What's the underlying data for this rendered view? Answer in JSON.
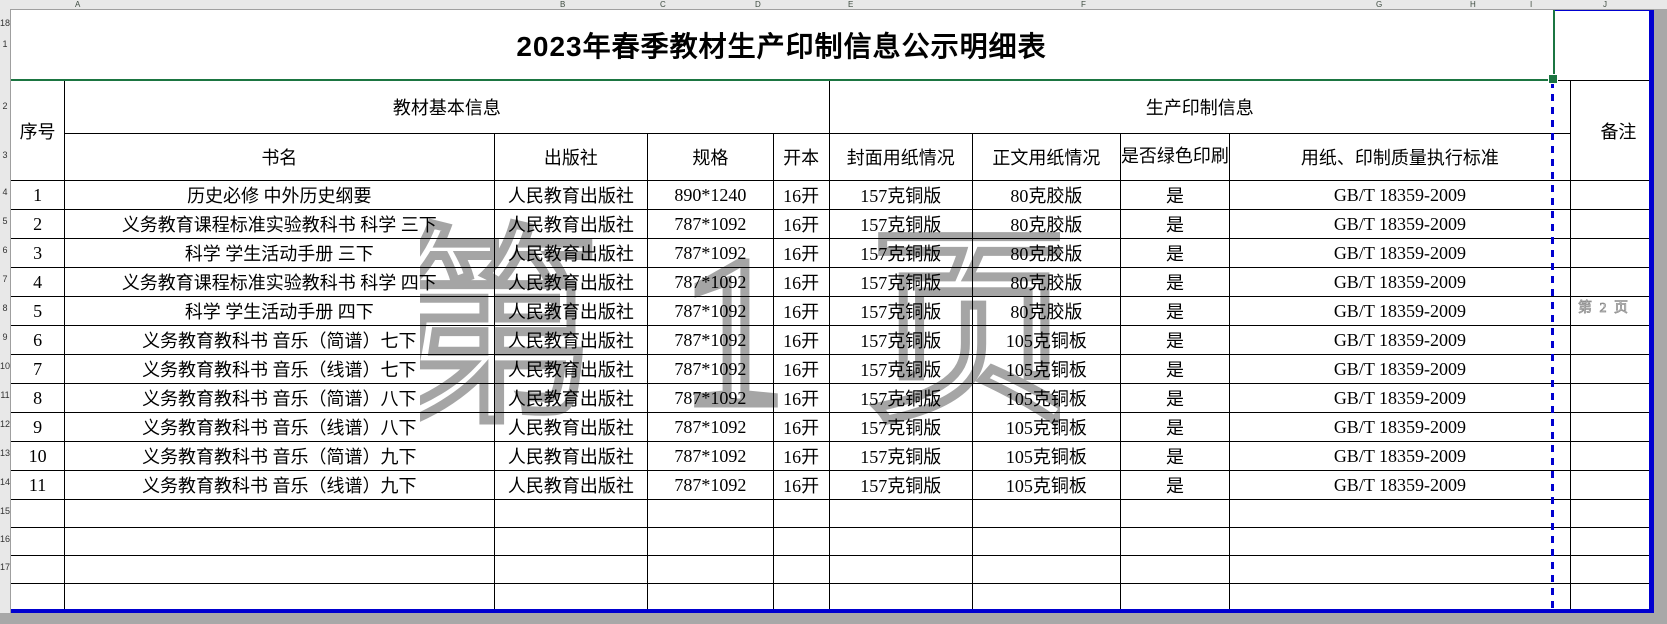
{
  "colors": {
    "selection_green": "#1b7541",
    "print_area_blue": "#0000d0",
    "grid_line_black": "#000000",
    "outside_gray": "#a8a8a8",
    "watermark_gray": "#8f8f8f",
    "header_strip_gray": "#e8e8e8"
  },
  "spreadsheet": {
    "column_letters": [
      "A",
      "B",
      "C",
      "D",
      "E",
      "F",
      "G",
      "H",
      "I",
      "J"
    ],
    "row_numbers": [
      "1",
      "2",
      "3",
      "4",
      "5",
      "6",
      "7",
      "8",
      "9",
      "10",
      "11",
      "12",
      "13",
      "14",
      "15",
      "16",
      "17",
      "18"
    ],
    "watermark_page1": "第 1 页",
    "watermark_page2": "第 2 页"
  },
  "title": "2023年春季教材生产印制信息公示明细表",
  "table": {
    "group_headers": {
      "serial": "序号",
      "basic": "教材基本信息",
      "production": "生产印制信息",
      "remark": "备注"
    },
    "sub_headers": {
      "name": "书名",
      "publisher": "出版社",
      "spec": "规格",
      "format": "开本",
      "cover": "封面用纸情况",
      "body": "正文用纸情况",
      "green": "是否绿色印刷",
      "standard": "用纸、印制质量执行标准"
    },
    "rows": [
      {
        "no": "1",
        "name": "历史必修 中外历史纲要",
        "publisher": "人民教育出版社",
        "spec": "890*1240",
        "format": "16开",
        "cover": "157克铜版",
        "body": "80克胶版",
        "green": "是",
        "standard": "GB/T 18359-2009",
        "remark": ""
      },
      {
        "no": "2",
        "name": "义务教育课程标准实验教科书 科学 三下",
        "publisher": "人民教育出版社",
        "spec": "787*1092",
        "format": "16开",
        "cover": "157克铜版",
        "body": "80克胶版",
        "green": "是",
        "standard": "GB/T 18359-2009",
        "remark": ""
      },
      {
        "no": "3",
        "name": "科学 学生活动手册 三下",
        "publisher": "人民教育出版社",
        "spec": "787*1092",
        "format": "16开",
        "cover": "157克铜版",
        "body": "80克胶版",
        "green": "是",
        "standard": "GB/T 18359-2009",
        "remark": ""
      },
      {
        "no": "4",
        "name": "义务教育课程标准实验教科书 科学 四下",
        "publisher": "人民教育出版社",
        "spec": "787*1092",
        "format": "16开",
        "cover": "157克铜版",
        "body": "80克胶版",
        "green": "是",
        "standard": "GB/T 18359-2009",
        "remark": ""
      },
      {
        "no": "5",
        "name": "科学 学生活动手册 四下",
        "publisher": "人民教育出版社",
        "spec": "787*1092",
        "format": "16开",
        "cover": "157克铜版",
        "body": "80克胶版",
        "green": "是",
        "standard": "GB/T 18359-2009",
        "remark": ""
      },
      {
        "no": "6",
        "name": "义务教育教科书 音乐（简谱）七下",
        "publisher": "人民教育出版社",
        "spec": "787*1092",
        "format": "16开",
        "cover": "157克铜版",
        "body": "105克铜板",
        "green": "是",
        "standard": "GB/T 18359-2009",
        "remark": ""
      },
      {
        "no": "7",
        "name": "义务教育教科书 音乐（线谱）七下",
        "publisher": "人民教育出版社",
        "spec": "787*1092",
        "format": "16开",
        "cover": "157克铜版",
        "body": "105克铜板",
        "green": "是",
        "standard": "GB/T 18359-2009",
        "remark": ""
      },
      {
        "no": "8",
        "name": "义务教育教科书 音乐（简谱）八下",
        "publisher": "人民教育出版社",
        "spec": "787*1092",
        "format": "16开",
        "cover": "157克铜版",
        "body": "105克铜板",
        "green": "是",
        "standard": "GB/T 18359-2009",
        "remark": ""
      },
      {
        "no": "9",
        "name": "义务教育教科书 音乐（线谱）八下",
        "publisher": "人民教育出版社",
        "spec": "787*1092",
        "format": "16开",
        "cover": "157克铜版",
        "body": "105克铜板",
        "green": "是",
        "standard": "GB/T 18359-2009",
        "remark": ""
      },
      {
        "no": "10",
        "name": "义务教育教科书 音乐（简谱）九下",
        "publisher": "人民教育出版社",
        "spec": "787*1092",
        "format": "16开",
        "cover": "157克铜版",
        "body": "105克铜板",
        "green": "是",
        "standard": "GB/T 18359-2009",
        "remark": ""
      },
      {
        "no": "11",
        "name": "义务教育教科书 音乐（线谱）九下",
        "publisher": "人民教育出版社",
        "spec": "787*1092",
        "format": "16开",
        "cover": "157克铜版",
        "body": "105克铜板",
        "green": "是",
        "standard": "GB/T 18359-2009",
        "remark": ""
      }
    ],
    "empty_row_count": 4
  }
}
